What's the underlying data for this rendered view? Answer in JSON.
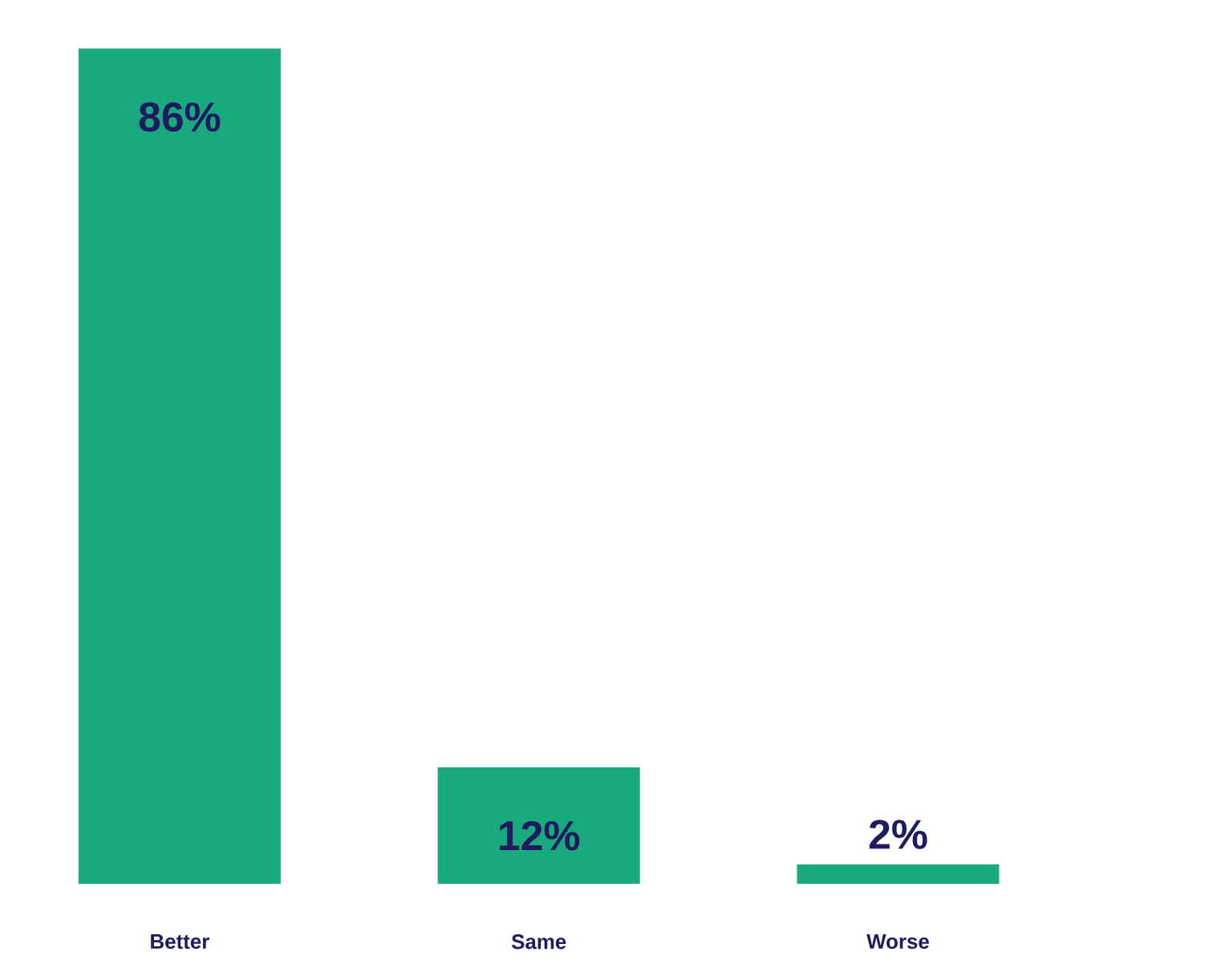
{
  "chart_data": {
    "type": "bar",
    "categories": [
      "Better",
      "Same",
      "Worse"
    ],
    "values": [
      86,
      12,
      2
    ],
    "color": "#1aa87e",
    "value_labels": [
      "86%",
      "12%",
      "2%"
    ]
  }
}
